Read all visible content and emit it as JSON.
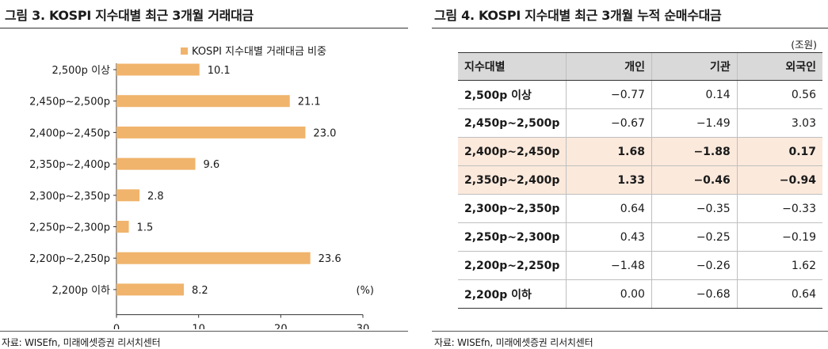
{
  "left": {
    "title": "그림 3. KOSPI 지수대별 최근 3개월 거래대금",
    "source": "자료: WISEfn, 미래에셋증권 리서치센터"
  },
  "right": {
    "title": "그림 4. KOSPI 지수대별 최근 3개월 누적 순매수대금",
    "unit": "(조원)",
    "headers": [
      "지수대별",
      "개인",
      "기관",
      "외국인"
    ],
    "rows": [
      {
        "band": "2,500p 이상",
        "cells": [
          "-0.77",
          "0.14",
          "0.56"
        ],
        "highlight": false
      },
      {
        "band": "2,450p~2,500p",
        "cells": [
          "-0.67",
          "-1.49",
          "3.03"
        ],
        "highlight": false
      },
      {
        "band": "2,400p~2,450p",
        "cells": [
          "1.68",
          "-1.88",
          "0.17"
        ],
        "highlight": true
      },
      {
        "band": "2,350p~2,400p",
        "cells": [
          "1.33",
          "-0.46",
          "-0.94"
        ],
        "highlight": true
      },
      {
        "band": "2,300p~2,350p",
        "cells": [
          "0.64",
          "-0.35",
          "-0.33"
        ],
        "highlight": false
      },
      {
        "band": "2,250p~2,300p",
        "cells": [
          "0.43",
          "-0.25",
          "-0.19"
        ],
        "highlight": false
      },
      {
        "band": "2,200p~2,250p",
        "cells": [
          "-1.48",
          "-0.26",
          "1.62"
        ],
        "highlight": false
      },
      {
        "band": "2,200p 이하",
        "cells": [
          "0.00",
          "-0.68",
          "0.64"
        ],
        "highlight": false
      }
    ],
    "highlight_color": "#fbe9dc",
    "header_color": "#d9d9d9",
    "source": "자료: WISEfn, 미래에셋증권 리서치센터"
  },
  "chart_data": {
    "type": "bar",
    "orientation": "horizontal",
    "categories": [
      "2,500p 이상",
      "2,450p~2,500p",
      "2,400p~2,450p",
      "2,350p~2,400p",
      "2,300p~2,350p",
      "2,250p~2,300p",
      "2,200p~2,250p",
      "2,200p 이하"
    ],
    "series": [
      {
        "name": "KOSPI 지수대별 거래대금 비중",
        "values": [
          10.1,
          21.1,
          23.0,
          9.6,
          2.8,
          1.5,
          23.6,
          8.2
        ],
        "color": "#f0b46c"
      }
    ],
    "value_labels": [
      "10.1",
      "21.1",
      "23.0",
      "9.6",
      "2.8",
      "1.5",
      "23.6",
      "8.2"
    ],
    "xlim": [
      0,
      30
    ],
    "xticks": [
      0,
      10,
      20,
      30
    ],
    "unit_label": "(%)",
    "legend_position": "top",
    "grid": false
  }
}
